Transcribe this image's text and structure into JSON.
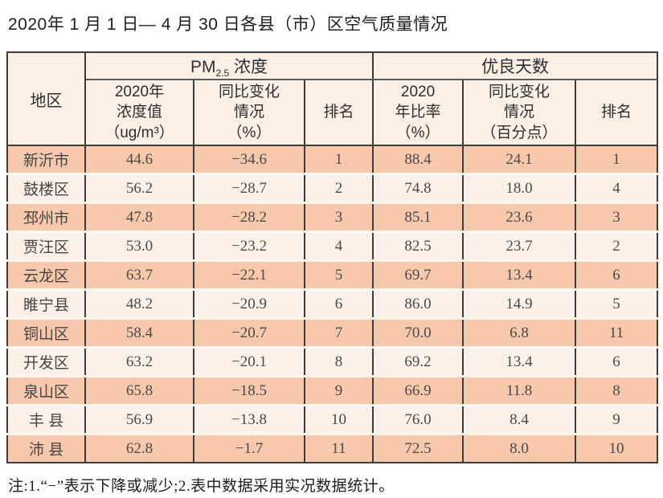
{
  "title": "2020年 1 月 1 日— 4 月 30 日各县（市）区空气质量情况",
  "footnote": "注:1.“−”表示下降或减少;2.表中数据采用实况数据统计。",
  "colors": {
    "stripe_salmon": "#f8c8ac",
    "stripe_cream": "#fcf1e9",
    "header_bg": "#fcefe6",
    "border_dark": "#3c3c3c",
    "text_data": "#4c4a47"
  },
  "table": {
    "region_header": "地区",
    "pm_group": {
      "prefix": "PM",
      "sub": "2.5",
      "suffix": " 浓度"
    },
    "good_days_group": "优良天数",
    "sub_headers": [
      "2020年\n浓度值\n（ug/m³）",
      "同比变化\n情况\n（%）",
      "排名",
      "2020\n年比率\n（%）",
      "同比变化\n情况\n（百分点）",
      "排名"
    ],
    "row_fields": [
      "region",
      "pm_value",
      "pm_change",
      "pm_rank",
      "good_ratio",
      "good_change",
      "good_rank"
    ],
    "rows": [
      {
        "region": "新沂市",
        "pm_value": "44.6",
        "pm_change": "−34.6",
        "pm_rank": "1",
        "good_ratio": "88.4",
        "good_change": "24.1",
        "good_rank": "1"
      },
      {
        "region": "鼓楼区",
        "pm_value": "56.2",
        "pm_change": "−28.7",
        "pm_rank": "2",
        "good_ratio": "74.8",
        "good_change": "18.0",
        "good_rank": "4"
      },
      {
        "region": "邳州市",
        "pm_value": "47.8",
        "pm_change": "−28.2",
        "pm_rank": "3",
        "good_ratio": "85.1",
        "good_change": "23.6",
        "good_rank": "3"
      },
      {
        "region": "贾汪区",
        "pm_value": "53.0",
        "pm_change": "−23.2",
        "pm_rank": "4",
        "good_ratio": "82.5",
        "good_change": "23.7",
        "good_rank": "2"
      },
      {
        "region": "云龙区",
        "pm_value": "63.7",
        "pm_change": "−22.1",
        "pm_rank": "5",
        "good_ratio": "69.7",
        "good_change": "13.4",
        "good_rank": "6"
      },
      {
        "region": "睢宁县",
        "pm_value": "48.2",
        "pm_change": "−20.9",
        "pm_rank": "6",
        "good_ratio": "86.0",
        "good_change": "14.9",
        "good_rank": "5"
      },
      {
        "region": "铜山区",
        "pm_value": "58.4",
        "pm_change": "−20.7",
        "pm_rank": "7",
        "good_ratio": "70.0",
        "good_change": "6.8",
        "good_rank": "11"
      },
      {
        "region": "开发区",
        "pm_value": "63.2",
        "pm_change": "−20.1",
        "pm_rank": "8",
        "good_ratio": "69.2",
        "good_change": "13.4",
        "good_rank": "6"
      },
      {
        "region": "泉山区",
        "pm_value": "65.8",
        "pm_change": "−18.5",
        "pm_rank": "9",
        "good_ratio": "66.9",
        "good_change": "11.8",
        "good_rank": "8"
      },
      {
        "region": "丰 县",
        "pm_value": "56.9",
        "pm_change": "−13.8",
        "pm_rank": "10",
        "good_ratio": "76.0",
        "good_change": "8.4",
        "good_rank": "9"
      },
      {
        "region": "沛 县",
        "pm_value": "62.8",
        "pm_change": "−1.7",
        "pm_rank": "11",
        "good_ratio": "72.5",
        "good_change": "8.0",
        "good_rank": "10"
      }
    ]
  }
}
